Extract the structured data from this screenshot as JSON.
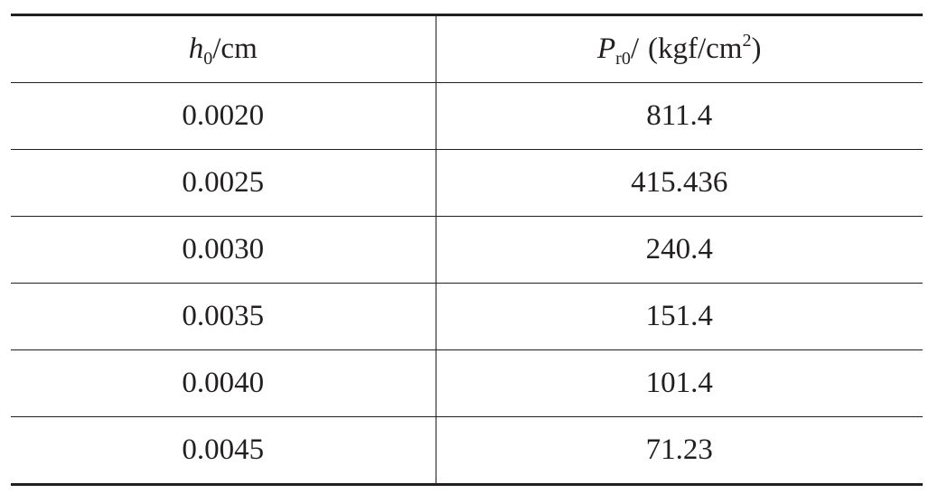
{
  "table": {
    "header": {
      "col1": {
        "symbol": "h",
        "subscript": "0",
        "unit": "/cm"
      },
      "col2": {
        "symbol": "P",
        "subscript": "r0",
        "slash": "/",
        "unit_open": "(kgf/cm",
        "unit_superscript": "2",
        "unit_close": ")"
      }
    },
    "rows": [
      {
        "h0": "0.0020",
        "pr0": "811.4"
      },
      {
        "h0": "0.0025",
        "pr0": "415.436"
      },
      {
        "h0": "0.0030",
        "pr0": "240.4"
      },
      {
        "h0": "0.0035",
        "pr0": "151.4"
      },
      {
        "h0": "0.0040",
        "pr0": "101.4"
      },
      {
        "h0": "0.0045",
        "pr0": "71.23"
      }
    ]
  }
}
